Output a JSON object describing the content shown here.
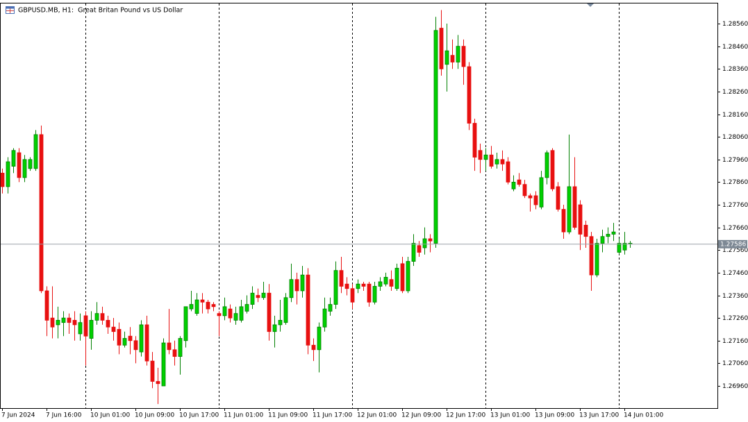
{
  "chart_data": {
    "type": "candlestick",
    "title": "GBPUSD.MB, H1:  Great Britan Pound vs US Dollar",
    "categories": [
      "7 Jun 2024",
      null,
      null,
      null,
      null,
      null,
      null,
      null,
      "7 Jun 16:00",
      null,
      null,
      null,
      null,
      null,
      null,
      null,
      "10 Jun 01:00",
      null,
      null,
      null,
      null,
      null,
      null,
      null,
      "10 Jun 09:00",
      null,
      null,
      null,
      null,
      null,
      null,
      null,
      "10 Jun 17:00",
      null,
      null,
      null,
      null,
      null,
      null,
      null,
      "11 Jun 01:00",
      null,
      null,
      null,
      null,
      null,
      null,
      null,
      "11 Jun 09:00",
      null,
      null,
      null,
      null,
      null,
      null,
      null,
      "11 Jun 17:00",
      null,
      null,
      null,
      null,
      null,
      null,
      null,
      "12 Jun 01:00",
      null,
      null,
      null,
      null,
      null,
      null,
      null,
      "12 Jun 09:00",
      null,
      null,
      null,
      null,
      null,
      null,
      null,
      "12 Jun 17:00",
      null,
      null,
      null,
      null,
      null,
      null,
      null,
      "13 Jun 01:00",
      null,
      null,
      null,
      null,
      null,
      null,
      null,
      "13 Jun 09:00",
      null,
      null,
      null,
      null,
      null,
      null,
      null,
      "13 Jun 17:00",
      null,
      null,
      null,
      null,
      null,
      null,
      null,
      "14 Jun 01:00",
      null
    ],
    "open": [
      1.279,
      1.2784,
      1.2793,
      1.2799,
      1.2788,
      1.2792,
      1.2792,
      1.2807,
      1.2738,
      1.2726,
      1.2723,
      1.2724,
      1.2726,
      1.2725,
      1.2719,
      1.2727,
      1.2717,
      1.2725,
      1.2728,
      1.2725,
      1.2722,
      1.2721,
      1.2714,
      1.2718,
      1.2716,
      1.2711,
      1.2723,
      1.2707,
      1.2698,
      1.2696,
      1.2715,
      1.2712,
      1.2709,
      1.2716,
      1.273,
      1.2728,
      1.2734,
      1.2733,
      1.2732,
      1.2728,
      1.2727,
      1.273,
      1.2725,
      1.2725,
      1.2729,
      1.2732,
      1.2736,
      1.2735,
      1.2737,
      1.272,
      1.2723,
      1.2724,
      1.2735,
      1.2743,
      1.2738,
      1.2745,
      1.2714,
      1.2712,
      1.2722,
      1.2729,
      1.2732,
      1.2747,
      1.2741,
      1.2739,
      1.2739,
      1.2741,
      1.2741,
      1.2733,
      1.274,
      1.2741,
      1.2743,
      1.2739,
      1.275,
      1.2738,
      1.2751,
      1.2758,
      1.2757,
      1.2761,
      1.2759,
      1.2854,
      1.2838,
      1.2842,
      1.2839,
      1.2846,
      1.2837,
      1.2812,
      1.28,
      1.2796,
      1.2798,
      1.2794,
      1.2796,
      1.2795,
      1.2783,
      1.2787,
      1.2785,
      1.278,
      1.278,
      1.2775,
      1.2788,
      1.28,
      1.2784,
      1.2774,
      1.2764,
      1.2784,
      1.2776,
      1.2767,
      1.2762,
      1.2745,
      1.2759,
      1.2762,
      1.2763,
      1.2755,
      1.2756,
      1.2759
    ],
    "high": [
      1.2792,
      1.2797,
      1.2801,
      1.2801,
      1.2798,
      1.2797,
      1.2809,
      1.2811,
      1.274,
      1.274,
      1.2731,
      1.2729,
      1.2728,
      1.2729,
      1.2728,
      1.2729,
      1.2729,
      1.2733,
      1.2731,
      1.2727,
      1.2726,
      1.2724,
      1.272,
      1.2722,
      1.2718,
      1.2725,
      1.2727,
      1.2711,
      1.2704,
      1.2717,
      1.273,
      1.2716,
      1.2718,
      1.2731,
      1.2738,
      1.2737,
      1.2737,
      1.2734,
      1.2733,
      1.2729,
      1.2735,
      1.2732,
      1.2731,
      1.2734,
      1.2736,
      1.274,
      1.2739,
      1.2742,
      1.2741,
      1.2727,
      1.2734,
      1.2737,
      1.275,
      1.2746,
      1.2749,
      1.2748,
      1.2717,
      1.2724,
      1.2735,
      1.2735,
      1.2751,
      1.2753,
      1.2744,
      1.2741,
      1.2743,
      1.2742,
      1.2742,
      1.2742,
      1.2744,
      1.2746,
      1.2747,
      1.275,
      1.2753,
      1.2753,
      1.2763,
      1.276,
      1.2766,
      1.2763,
      1.2859,
      1.2862,
      1.2856,
      1.2849,
      1.2851,
      1.2849,
      1.2839,
      1.2814,
      1.2803,
      1.2801,
      1.2802,
      1.2799,
      1.28,
      1.2797,
      1.2789,
      1.279,
      1.2787,
      1.2781,
      1.2782,
      1.2791,
      1.28,
      1.2801,
      1.2786,
      1.2776,
      1.2807,
      1.2797,
      1.2778,
      1.2769,
      1.2764,
      1.2761,
      1.2765,
      1.2766,
      1.2768,
      1.2761,
      1.2764,
      1.276
    ],
    "low": [
      1.2781,
      1.2781,
      1.279,
      1.2786,
      1.2786,
      1.2791,
      1.2791,
      1.2737,
      1.2718,
      1.2717,
      1.2717,
      1.2718,
      1.2719,
      1.2716,
      1.2716,
      1.2705,
      1.2712,
      1.2723,
      1.2723,
      1.2719,
      1.2716,
      1.271,
      1.2713,
      1.271,
      1.2706,
      1.2709,
      1.2705,
      1.2695,
      1.2688,
      1.2696,
      1.271,
      1.2705,
      1.2701,
      1.2713,
      1.2729,
      1.2727,
      1.2728,
      1.2728,
      1.2729,
      1.2718,
      1.2725,
      1.2724,
      1.2723,
      1.2724,
      1.2728,
      1.273,
      1.2733,
      1.2734,
      1.2716,
      1.2713,
      1.272,
      1.2723,
      1.2733,
      1.2732,
      1.2735,
      1.271,
      1.2707,
      1.2702,
      1.272,
      1.2727,
      1.273,
      1.2737,
      1.2736,
      1.273,
      1.2737,
      1.2738,
      1.2731,
      1.2732,
      1.2738,
      1.274,
      1.2738,
      1.2738,
      1.2737,
      1.2737,
      1.2749,
      1.2753,
      1.2754,
      1.2755,
      1.2757,
      1.2833,
      1.2826,
      1.2836,
      1.2836,
      1.2829,
      1.2809,
      1.2791,
      1.279,
      1.2791,
      1.2792,
      1.2792,
      1.2791,
      1.2785,
      1.2782,
      1.2784,
      1.2779,
      1.2773,
      1.2774,
      1.2774,
      1.2785,
      1.2782,
      1.2773,
      1.2761,
      1.2763,
      1.2765,
      1.2756,
      1.2757,
      1.2738,
      1.2744,
      1.2755,
      1.2759,
      1.276,
      1.2754,
      1.2754,
      1.2757
    ],
    "close": [
      1.2784,
      1.2795,
      1.28,
      1.2788,
      1.2796,
      1.2796,
      1.2807,
      1.2738,
      1.2725,
      1.2722,
      1.2725,
      1.2726,
      1.2724,
      1.2723,
      1.2724,
      1.2718,
      1.2725,
      1.2728,
      1.2725,
      1.2722,
      1.272,
      1.2714,
      1.2717,
      1.2716,
      1.2712,
      1.2723,
      1.2707,
      1.2698,
      1.2697,
      1.2715,
      1.2712,
      1.2709,
      1.2717,
      1.2731,
      1.2732,
      1.2734,
      1.2733,
      1.273,
      1.2731,
      1.2727,
      1.2731,
      1.2726,
      1.2728,
      1.2731,
      1.2732,
      1.2737,
      1.2735,
      1.2737,
      1.272,
      1.2723,
      1.2725,
      1.2735,
      1.2743,
      1.2738,
      1.2745,
      1.2714,
      1.2712,
      1.2722,
      1.273,
      1.2732,
      1.2747,
      1.274,
      1.2739,
      1.2733,
      1.2741,
      1.274,
      1.2733,
      1.274,
      1.2742,
      1.2744,
      1.274,
      1.2748,
      1.2738,
      1.2751,
      1.2759,
      1.2755,
      1.2761,
      1.276,
      1.2853,
      1.2836,
      1.2844,
      1.2839,
      1.2846,
      1.2837,
      1.2812,
      1.2797,
      1.2796,
      1.2798,
      1.2793,
      1.2796,
      1.2794,
      1.2786,
      1.2786,
      1.2785,
      1.278,
      1.2779,
      1.2776,
      1.2788,
      1.2799,
      1.2783,
      1.2774,
      1.2764,
      1.2784,
      1.2766,
      1.2763,
      1.2762,
      1.2745,
      1.2759,
      1.2762,
      1.2763,
      1.2764,
      1.2759,
      1.2759,
      1.2759
    ],
    "up_color": "#00d000",
    "down_color": "#e81010",
    "current_price": 1.27586,
    "ylim": [
      1.26862,
      1.28652
    ],
    "yticks": [
      {
        "value": 1.2696,
        "label": "1.26960"
      },
      {
        "value": 1.2706,
        "label": "1.27060"
      },
      {
        "value": 1.2716,
        "label": "1.27160"
      },
      {
        "value": 1.2726,
        "label": "1.27260"
      },
      {
        "value": 1.2736,
        "label": "1.27360"
      },
      {
        "value": 1.2746,
        "label": "1.27460"
      },
      {
        "value": 1.2756,
        "label": "1.27560"
      },
      {
        "value": 1.2766,
        "label": "1.27660"
      },
      {
        "value": 1.2776,
        "label": "1.27760"
      },
      {
        "value": 1.2786,
        "label": "1.27860"
      },
      {
        "value": 1.2796,
        "label": "1.27960"
      },
      {
        "value": 1.2806,
        "label": "1.28060"
      },
      {
        "value": 1.2816,
        "label": "1.28160"
      },
      {
        "value": 1.2826,
        "label": "1.28260"
      },
      {
        "value": 1.2836,
        "label": "1.28360"
      },
      {
        "value": 1.2846,
        "label": "1.28460"
      },
      {
        "value": 1.2856,
        "label": "1.28560"
      }
    ],
    "grid": true
  }
}
